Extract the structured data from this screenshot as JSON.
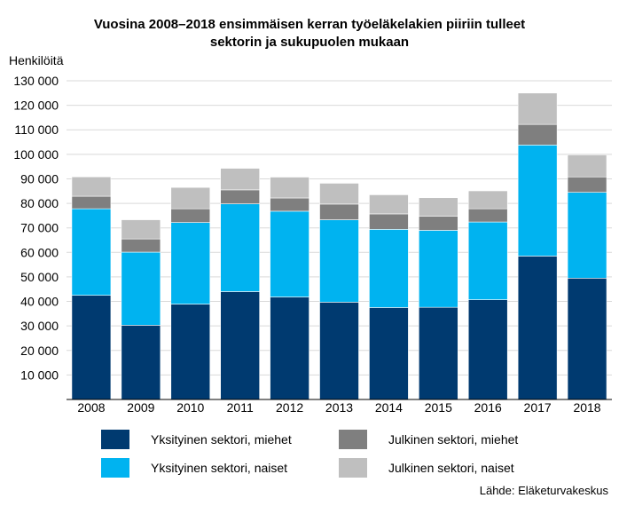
{
  "chart_data": {
    "type": "bar",
    "stacked": true,
    "title": "Vuosina 2008–2018 ensimmäisen kerran työeläkelakien piiriin tulleet sektorin ja sukupuolen mukaan",
    "title_line1": "Vuosina 2008–2018 ensimmäisen kerran työeläkelakien piiriin tulleet",
    "title_line2": "sektorin ja sukupuolen mukaan",
    "ylabel": "Henkilöitä",
    "xlabel": "",
    "ylim": [
      0,
      130000
    ],
    "yticks": [
      10000,
      20000,
      30000,
      40000,
      50000,
      60000,
      70000,
      80000,
      90000,
      100000,
      110000,
      120000,
      130000
    ],
    "ytick_labels": [
      "10 000",
      "20 000",
      "30 000",
      "40 000",
      "50 000",
      "60 000",
      "70 000",
      "80 000",
      "90 000",
      "100 000",
      "110 000",
      "120 000",
      "130 000"
    ],
    "grid": true,
    "legend_position": "bottom",
    "categories": [
      "2008",
      "2009",
      "2010",
      "2011",
      "2012",
      "2013",
      "2014",
      "2015",
      "2016",
      "2017",
      "2018"
    ],
    "series": [
      {
        "name": "Yksityinen sektori, miehet",
        "color": "#003a70",
        "values": [
          42500,
          30300,
          38900,
          44000,
          41800,
          39700,
          37500,
          37600,
          40700,
          58500,
          49500
        ]
      },
      {
        "name": "Yksityinen sektori, naiset",
        "color": "#00b3f0",
        "values": [
          35300,
          29800,
          33300,
          35800,
          35000,
          33600,
          31900,
          31400,
          31700,
          45300,
          35000
        ]
      },
      {
        "name": "Julkinen sektori, miehet",
        "color": "#7f7f7f",
        "values": [
          5100,
          5400,
          5600,
          5700,
          5400,
          6400,
          6300,
          5800,
          5400,
          8400,
          6300
        ]
      },
      {
        "name": "Julkinen sektori, naiset",
        "color": "#bfbfbf",
        "values": [
          7900,
          7800,
          8700,
          8800,
          8500,
          8500,
          7800,
          7500,
          7300,
          12800,
          9000
        ]
      }
    ]
  },
  "source": "Lähde: Eläketurvakeskus"
}
